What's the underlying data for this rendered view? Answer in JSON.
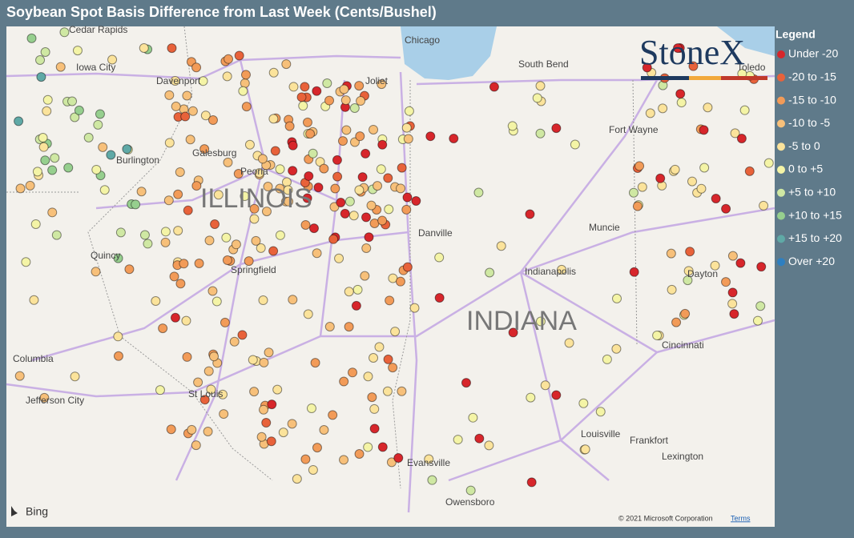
{
  "header": {
    "title": "Soybean Spot Basis Difference from Last Week (Cents/Bushel)"
  },
  "legend": {
    "title": "Legend",
    "items": [
      {
        "label": "Under -20",
        "color": "#d7262b"
      },
      {
        "label": "-20 to -15",
        "color": "#e8623a"
      },
      {
        "label": "-15 to -10",
        "color": "#f29b58"
      },
      {
        "label": "-10 to -5",
        "color": "#f7c07a"
      },
      {
        "label": "-5 to 0",
        "color": "#fbe39b"
      },
      {
        "label": "0 to +5",
        "color": "#f4f4a6"
      },
      {
        "label": "+5 to +10",
        "color": "#cfe8a3"
      },
      {
        "label": "+10 to +15",
        "color": "#96cf8e"
      },
      {
        "label": "+15 to +20",
        "color": "#5fa9a6"
      },
      {
        "label": "Over +20",
        "color": "#2e7fc0"
      }
    ]
  },
  "map": {
    "labels": [
      {
        "text": "Cedar Rapids"
      },
      {
        "text": "Iowa City"
      },
      {
        "text": "Davenport"
      },
      {
        "text": "Galesburg"
      },
      {
        "text": "Burlington"
      },
      {
        "text": "Peoria"
      },
      {
        "text": "ILLINOIS"
      },
      {
        "text": "Quincy"
      },
      {
        "text": "Springfield"
      },
      {
        "text": "Columbia"
      },
      {
        "text": "Jefferson City"
      },
      {
        "text": "St Louis"
      },
      {
        "text": "Chicago"
      },
      {
        "text": "Joliet"
      },
      {
        "text": "South Bend"
      },
      {
        "text": "Fort Wayne"
      },
      {
        "text": "Muncie"
      },
      {
        "text": "Indianapolis"
      },
      {
        "text": "INDIANA"
      },
      {
        "text": "Dayton"
      },
      {
        "text": "Cincinnati"
      },
      {
        "text": "Louisville"
      },
      {
        "text": "Frankfort"
      },
      {
        "text": "Lexington"
      },
      {
        "text": "Evansville"
      },
      {
        "text": "Owensboro"
      },
      {
        "text": "Toledo"
      },
      {
        "text": "Danville"
      }
    ]
  },
  "logo": "StoneX",
  "attribution": {
    "provider": "Bing",
    "copyright": "© 2021 Microsoft Corporation",
    "terms": "Terms"
  }
}
